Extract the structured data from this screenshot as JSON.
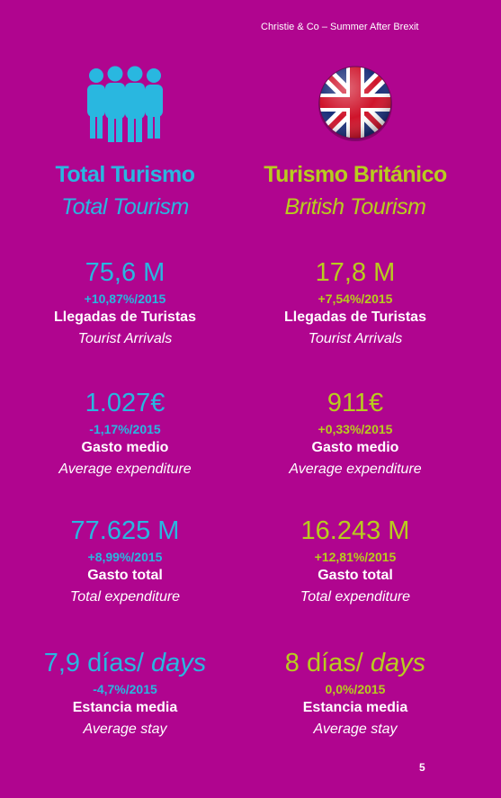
{
  "header": "Christie & Co – Summer After Brexit",
  "page_number": "5",
  "colors": {
    "background": "#b0058f",
    "total_accent": "#29b7e0",
    "british_accent": "#b8cc1e",
    "label_text": "#ffffff"
  },
  "total": {
    "icon": "people-group-icon",
    "title": "Total Turismo",
    "subtitle": "Total Tourism",
    "stats": [
      {
        "value": "75,6 M",
        "change": "+10,87%/2015",
        "label_es": "Llegadas de Turistas",
        "label_en": "Tourist Arrivals"
      },
      {
        "value": "1.027€",
        "change": "-1,17%/2015",
        "label_es": "Gasto medio",
        "label_en": "Average expenditure"
      },
      {
        "value": "77.625 M",
        "change": "+8,99%/2015",
        "label_es": "Gasto total",
        "label_en": "Total expenditure"
      },
      {
        "value": "7,9 días/",
        "value_suffix": " days",
        "change": "-4,7%/2015",
        "label_es": "Estancia media",
        "label_en": "Average stay"
      }
    ]
  },
  "british": {
    "icon": "union-jack-flag-icon",
    "title": "Turismo Británico",
    "subtitle": "British Tourism",
    "stats": [
      {
        "value": "17,8 M",
        "change": "+7,54%/2015",
        "label_es": "Llegadas de Turistas",
        "label_en": "Tourist Arrivals"
      },
      {
        "value": "911€",
        "change": "+0,33%/2015",
        "label_es": "Gasto medio",
        "label_en": "Average expenditure"
      },
      {
        "value": "16.243 M",
        "change": "+12,81%/2015",
        "label_es": "Gasto total",
        "label_en": "Total expenditure"
      },
      {
        "value": "8 días/",
        "value_suffix": " days",
        "change": "0,0%/2015",
        "label_es": "Estancia media",
        "label_en": "Average stay"
      }
    ]
  }
}
